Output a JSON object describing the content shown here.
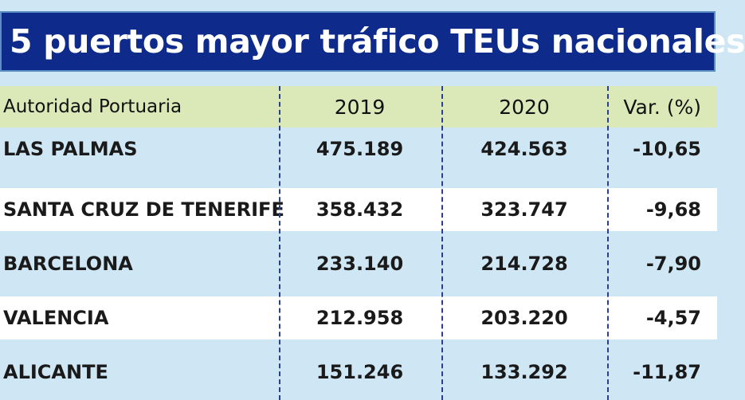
{
  "title": "5 puertos mayor tráfico TEUs nacionales",
  "table": {
    "headers": [
      "Autoridad Portuaria",
      "2019",
      "2020",
      "Var. (%)"
    ],
    "rows": [
      [
        "LAS PALMAS",
        "475.189",
        "424.563",
        "-10,65"
      ],
      [
        "SANTA CRUZ DE TENERIFE",
        "358.432",
        "323.747",
        "-9,68"
      ],
      [
        "BARCELONA",
        "233.140",
        "214.728",
        "-7,90"
      ],
      [
        "VALENCIA",
        "212.958",
        "203.220",
        "-4,57"
      ],
      [
        "ALICANTE",
        "151.246",
        "133.292",
        "-11,87"
      ]
    ]
  },
  "colors": {
    "title_background": "#0e2a8a",
    "header_background": "#dbe9b8",
    "row_blue": "#cfe7f5",
    "row_white": "#ffffff",
    "divider": "#2a3f8f"
  }
}
